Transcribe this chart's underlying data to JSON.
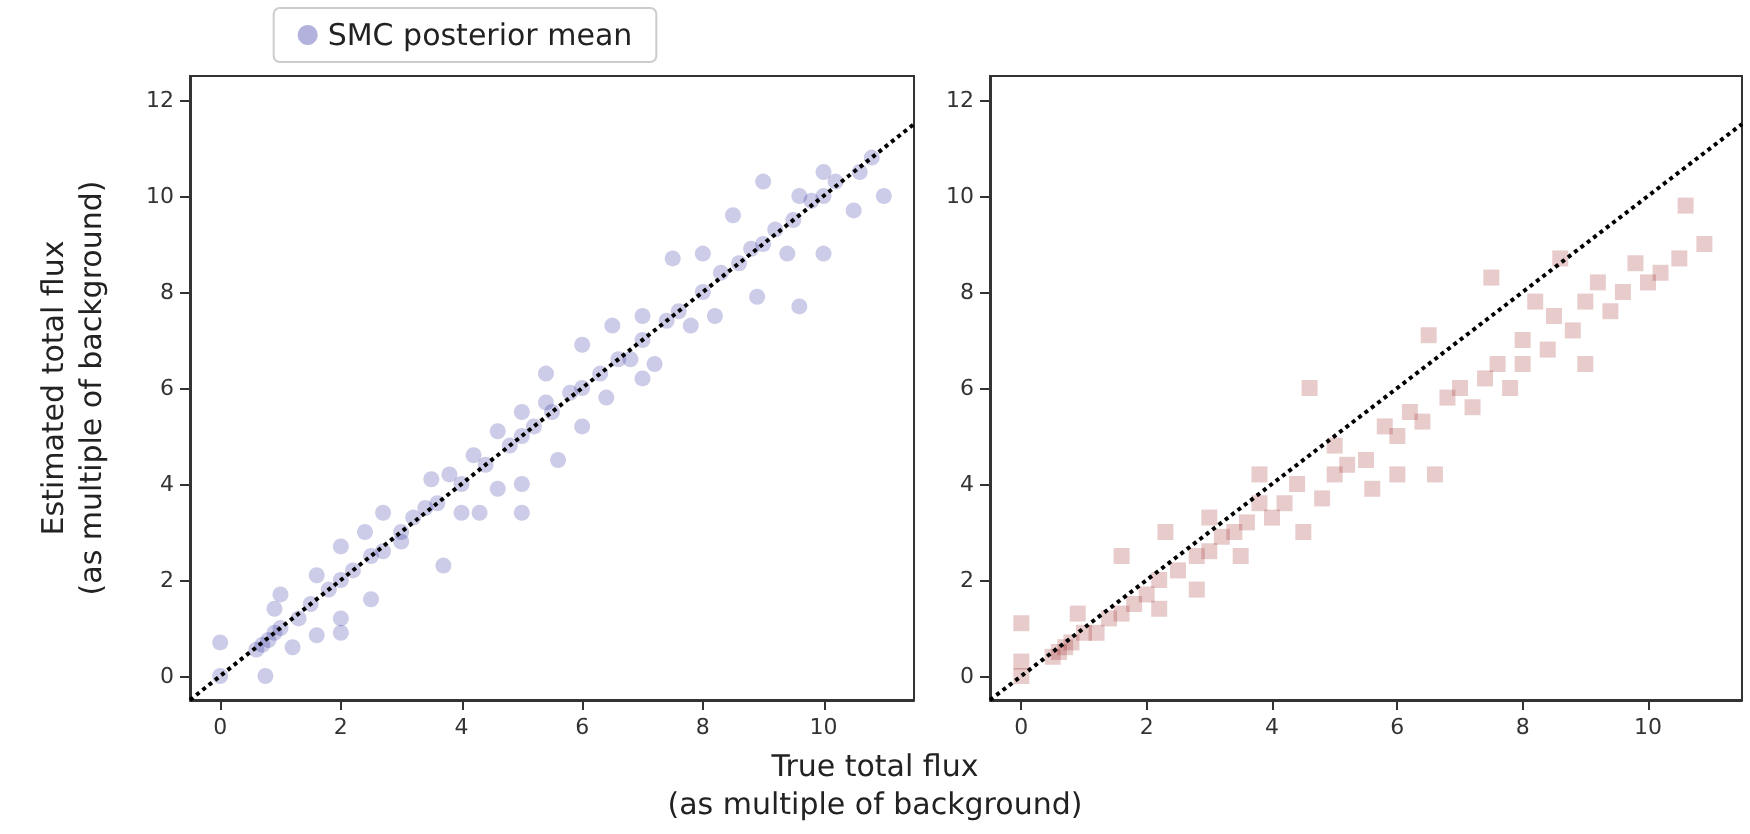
{
  "chart_data": [
    {
      "type": "scatter",
      "xlabel": "True total flux\n(as multiple of background)",
      "ylabel": "Estimated total flux\n(as multiple of background)",
      "xlim": [
        -0.5,
        11.5
      ],
      "ylim": [
        -0.5,
        12.5
      ],
      "xticks": [
        0,
        2,
        4,
        6,
        8,
        10
      ],
      "yticks": [
        0,
        2,
        4,
        6,
        8,
        10,
        12
      ],
      "grid": false,
      "legend": "top",
      "series": [
        {
          "name": "SMC posterior mean",
          "color": "#00008b",
          "marker": "circle",
          "x": [
            0,
            0,
            0.6,
            0.7,
            0.8,
            0.9,
            1.0,
            0.75,
            0.9,
            1.0,
            1.2,
            1.3,
            1.5,
            1.6,
            1.6,
            1.8,
            2.0,
            2.0,
            2.0,
            2.0,
            2.2,
            2.4,
            2.5,
            2.5,
            2.7,
            2.7,
            3.0,
            3.0,
            3.2,
            3.4,
            3.5,
            3.6,
            3.7,
            3.8,
            4.0,
            4.0,
            4.2,
            4.3,
            4.4,
            4.6,
            4.6,
            4.8,
            5.0,
            5.0,
            5.0,
            5.0,
            5.2,
            5.4,
            5.4,
            5.5,
            5.6,
            5.8,
            6.0,
            6.0,
            6.0,
            6.3,
            6.4,
            6.5,
            6.6,
            6.8,
            7.0,
            7.0,
            7.0,
            7.2,
            7.4,
            7.5,
            7.6,
            7.8,
            8.0,
            8.0,
            8.2,
            8.3,
            8.6,
            8.5,
            8.8,
            8.9,
            9.0,
            9.0,
            9.2,
            9.4,
            9.5,
            9.6,
            9.6,
            9.8,
            10.0,
            10.0,
            10.0,
            10.2,
            10.5,
            10.6,
            10.8,
            11.0
          ],
          "values": [
            0,
            0.7,
            0.55,
            0.65,
            0.75,
            0.9,
            1.0,
            0,
            1.4,
            1.7,
            0.6,
            1.2,
            1.5,
            2.1,
            0.85,
            1.8,
            2.0,
            2.7,
            1.2,
            0.9,
            2.2,
            3.0,
            2.5,
            1.6,
            2.6,
            3.4,
            3.0,
            2.8,
            3.3,
            3.5,
            4.1,
            3.6,
            2.3,
            4.2,
            4.0,
            3.4,
            4.6,
            3.4,
            4.4,
            5.1,
            3.9,
            4.8,
            5.0,
            5.5,
            4.0,
            3.4,
            5.2,
            5.7,
            6.3,
            5.5,
            4.5,
            5.9,
            6.0,
            5.2,
            6.9,
            6.3,
            5.8,
            7.3,
            6.6,
            6.6,
            7.0,
            7.5,
            6.2,
            6.5,
            7.4,
            8.7,
            7.6,
            7.3,
            8.0,
            8.8,
            7.5,
            8.4,
            8.6,
            9.6,
            8.9,
            7.9,
            9.0,
            10.3,
            9.3,
            8.8,
            9.5,
            10.0,
            7.7,
            9.9,
            10.0,
            10.5,
            8.8,
            10.3,
            9.7,
            10.5,
            10.8,
            10.0
          ]
        },
        {
          "type": "line",
          "color": "#000000",
          "line_style": "dotted",
          "marker": "none",
          "x": [
            -0.5,
            11.5
          ],
          "values": [
            -0.5,
            11.5
          ]
        }
      ]
    },
    {
      "type": "scatter",
      "xlim": [
        -0.5,
        11.5
      ],
      "ylim": [
        -0.5,
        12.5
      ],
      "xticks": [
        0,
        2,
        4,
        6,
        8,
        10
      ],
      "yticks": [
        0,
        2,
        4,
        6,
        8,
        10,
        12
      ],
      "grid": false,
      "legend": false,
      "series": [
        {
          "color": "#8b0000",
          "marker": "square",
          "x": [
            0,
            0,
            0,
            0.5,
            0.6,
            0.7,
            0.8,
            0.9,
            1.0,
            1.2,
            1.4,
            1.6,
            1.6,
            1.8,
            2.0,
            2.2,
            2.2,
            2.3,
            2.5,
            2.8,
            2.8,
            3.0,
            3.0,
            3.2,
            3.4,
            3.5,
            3.6,
            3.8,
            3.8,
            4.0,
            4.2,
            4.4,
            4.5,
            4.6,
            4.8,
            5.0,
            5.0,
            5.2,
            5.5,
            5.6,
            5.8,
            6.0,
            6.0,
            6.2,
            6.4,
            6.5,
            6.6,
            6.8,
            7.0,
            7.2,
            7.4,
            7.6,
            7.5,
            7.8,
            8.0,
            8.0,
            8.2,
            8.4,
            8.5,
            8.6,
            8.8,
            9.0,
            9.0,
            9.2,
            9.4,
            9.6,
            9.8,
            10.0,
            10.2,
            10.5,
            10.6,
            10.9
          ],
          "values": [
            0,
            0.3,
            1.1,
            0.4,
            0.5,
            0.6,
            0.7,
            1.3,
            0.9,
            0.9,
            1.2,
            1.3,
            2.5,
            1.5,
            1.7,
            2.0,
            1.4,
            3.0,
            2.2,
            2.5,
            1.8,
            2.6,
            3.3,
            2.9,
            3.0,
            2.5,
            3.2,
            3.6,
            4.2,
            3.3,
            3.6,
            4.0,
            3.0,
            6.0,
            3.7,
            4.2,
            4.8,
            4.4,
            4.5,
            3.9,
            5.2,
            5.0,
            4.2,
            5.5,
            5.3,
            7.1,
            4.2,
            5.8,
            6.0,
            5.6,
            6.2,
            6.5,
            8.3,
            6.0,
            7.0,
            6.5,
            7.8,
            6.8,
            7.5,
            8.7,
            7.2,
            7.8,
            6.5,
            8.2,
            7.6,
            8.0,
            8.6,
            8.2,
            8.4,
            8.7,
            9.8,
            9.0
          ]
        },
        {
          "type": "line",
          "color": "#000000",
          "line_style": "dotted",
          "marker": "none",
          "x": [
            -0.5,
            11.5
          ],
          "values": [
            -0.5,
            11.5
          ]
        }
      ]
    }
  ]
}
